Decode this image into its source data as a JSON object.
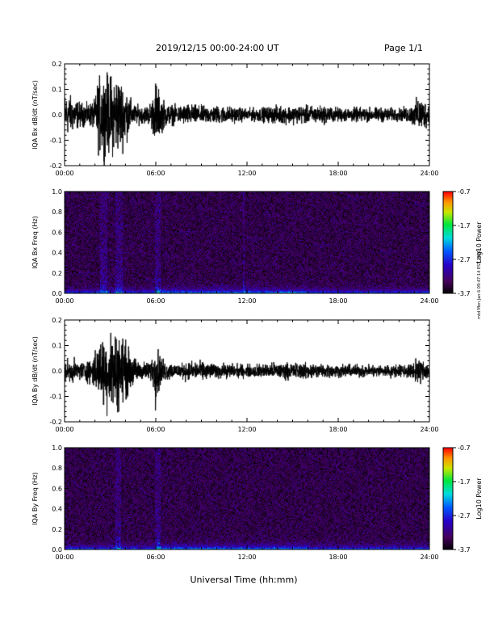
{
  "header": {
    "title": "2019/12/15  00:00-24:00 UT",
    "page": "Page 1/1"
  },
  "stamp": "mtd Mon Jan 6 09:47:14 EST 2020",
  "xlabel": "Universal Time (hh:mm)",
  "chart_data": [
    {
      "type": "line",
      "ylabel": "IQA Bx dB/dt (nT/sec)",
      "xlim": [
        "00:00",
        "24:00"
      ],
      "ylim": [
        -0.2,
        0.2
      ],
      "xticks": [
        "00:00",
        "06:00",
        "12:00",
        "18:00",
        "24:00"
      ],
      "yticks": [
        "-0.2",
        "-0.1",
        "0.0",
        "0.1",
        "0.2"
      ],
      "ytick_values": [
        -0.2,
        -0.1,
        0.0,
        0.1,
        0.2
      ],
      "amplitude_envelope": {
        "hours": [
          0,
          0.5,
          1,
          1.5,
          2,
          2.2,
          2.5,
          3,
          3.5,
          4,
          4.5,
          5,
          5.5,
          5.9,
          6,
          6.3,
          6.8,
          7.5,
          8,
          9,
          10,
          11,
          12,
          13,
          14,
          15,
          16,
          17,
          18,
          19,
          20,
          21,
          22,
          22.8,
          23.3,
          23.7,
          24
        ],
        "values": [
          0.12,
          0.1,
          0.07,
          0.06,
          0.08,
          0.2,
          0.22,
          0.22,
          0.22,
          0.16,
          0.06,
          0.05,
          0.05,
          0.12,
          0.2,
          0.1,
          0.06,
          0.05,
          0.06,
          0.05,
          0.05,
          0.045,
          0.035,
          0.04,
          0.05,
          0.05,
          0.05,
          0.05,
          0.04,
          0.04,
          0.04,
          0.04,
          0.035,
          0.05,
          0.1,
          0.08,
          0.06
        ]
      }
    },
    {
      "type": "heatmap",
      "ylabel": "IQA Bx Freq (Hz)",
      "xlim": [
        "00:00",
        "24:00"
      ],
      "ylim": [
        0,
        1
      ],
      "xticks": [
        "00:00",
        "06:00",
        "12:00",
        "18:00",
        "24:00"
      ],
      "yticks": [
        "0.0",
        "0.2",
        "0.4",
        "0.6",
        "0.8",
        "1.0"
      ],
      "ytick_values": [
        0,
        0.2,
        0.4,
        0.6,
        0.8,
        1.0
      ],
      "colorbar": {
        "label": "Log10 Power",
        "range": [
          -3.7,
          -0.7
        ],
        "ticks": [
          "-0.7",
          "-1.7",
          "-2.7",
          "-3.7"
        ],
        "tick_values": [
          -0.7,
          -1.7,
          -2.7,
          -3.7
        ]
      },
      "background_level": -3.4,
      "bright_bands_hours": [
        [
          2.3,
          2.8
        ],
        [
          3.3,
          3.8
        ],
        [
          5.9,
          6.3
        ],
        [
          11.7,
          11.8
        ]
      ]
    },
    {
      "type": "line",
      "ylabel": "IQA By dB/dt (nT/sec)",
      "xlim": [
        "00:00",
        "24:00"
      ],
      "ylim": [
        -0.2,
        0.2
      ],
      "xticks": [
        "00:00",
        "06:00",
        "12:00",
        "18:00",
        "24:00"
      ],
      "yticks": [
        "-0.2",
        "-0.1",
        "0.0",
        "0.1",
        "0.2"
      ],
      "ytick_values": [
        -0.2,
        -0.1,
        0.0,
        0.1,
        0.2
      ],
      "amplitude_envelope": {
        "hours": [
          0,
          0.5,
          1,
          1.5,
          2,
          2.5,
          3,
          3.5,
          4,
          4.5,
          5,
          5.5,
          5.9,
          6,
          6.3,
          6.8,
          7.5,
          8,
          9,
          10,
          11,
          12,
          13,
          14,
          15,
          16,
          17,
          18,
          19,
          20,
          21,
          22,
          22.8,
          23.3,
          23.7,
          24
        ],
        "values": [
          0.07,
          0.06,
          0.05,
          0.06,
          0.1,
          0.2,
          0.22,
          0.22,
          0.16,
          0.08,
          0.05,
          0.05,
          0.1,
          0.2,
          0.08,
          0.05,
          0.04,
          0.05,
          0.05,
          0.04,
          0.04,
          0.035,
          0.04,
          0.045,
          0.045,
          0.045,
          0.04,
          0.035,
          0.035,
          0.035,
          0.035,
          0.035,
          0.04,
          0.07,
          0.05,
          0.05
        ]
      }
    },
    {
      "type": "heatmap",
      "ylabel": "IQA By Freq (Hz)",
      "xlim": [
        "00:00",
        "24:00"
      ],
      "ylim": [
        0,
        1
      ],
      "xticks": [
        "00:00",
        "06:00",
        "12:00",
        "18:00",
        "24:00"
      ],
      "yticks": [
        "0.0",
        "0.2",
        "0.4",
        "0.6",
        "0.8",
        "1.0"
      ],
      "ytick_values": [
        0,
        0.2,
        0.4,
        0.6,
        0.8,
        1.0
      ],
      "colorbar": {
        "label": "Log10 Power",
        "range": [
          -3.7,
          -0.7
        ],
        "ticks": [
          "-0.7",
          "-1.7",
          "-2.7",
          "-3.7"
        ],
        "tick_values": [
          -0.7,
          -1.7,
          -2.7,
          -3.7
        ]
      },
      "background_level": -3.4,
      "bright_bands_hours": [
        [
          3.3,
          3.7
        ],
        [
          5.9,
          6.3
        ]
      ]
    }
  ]
}
